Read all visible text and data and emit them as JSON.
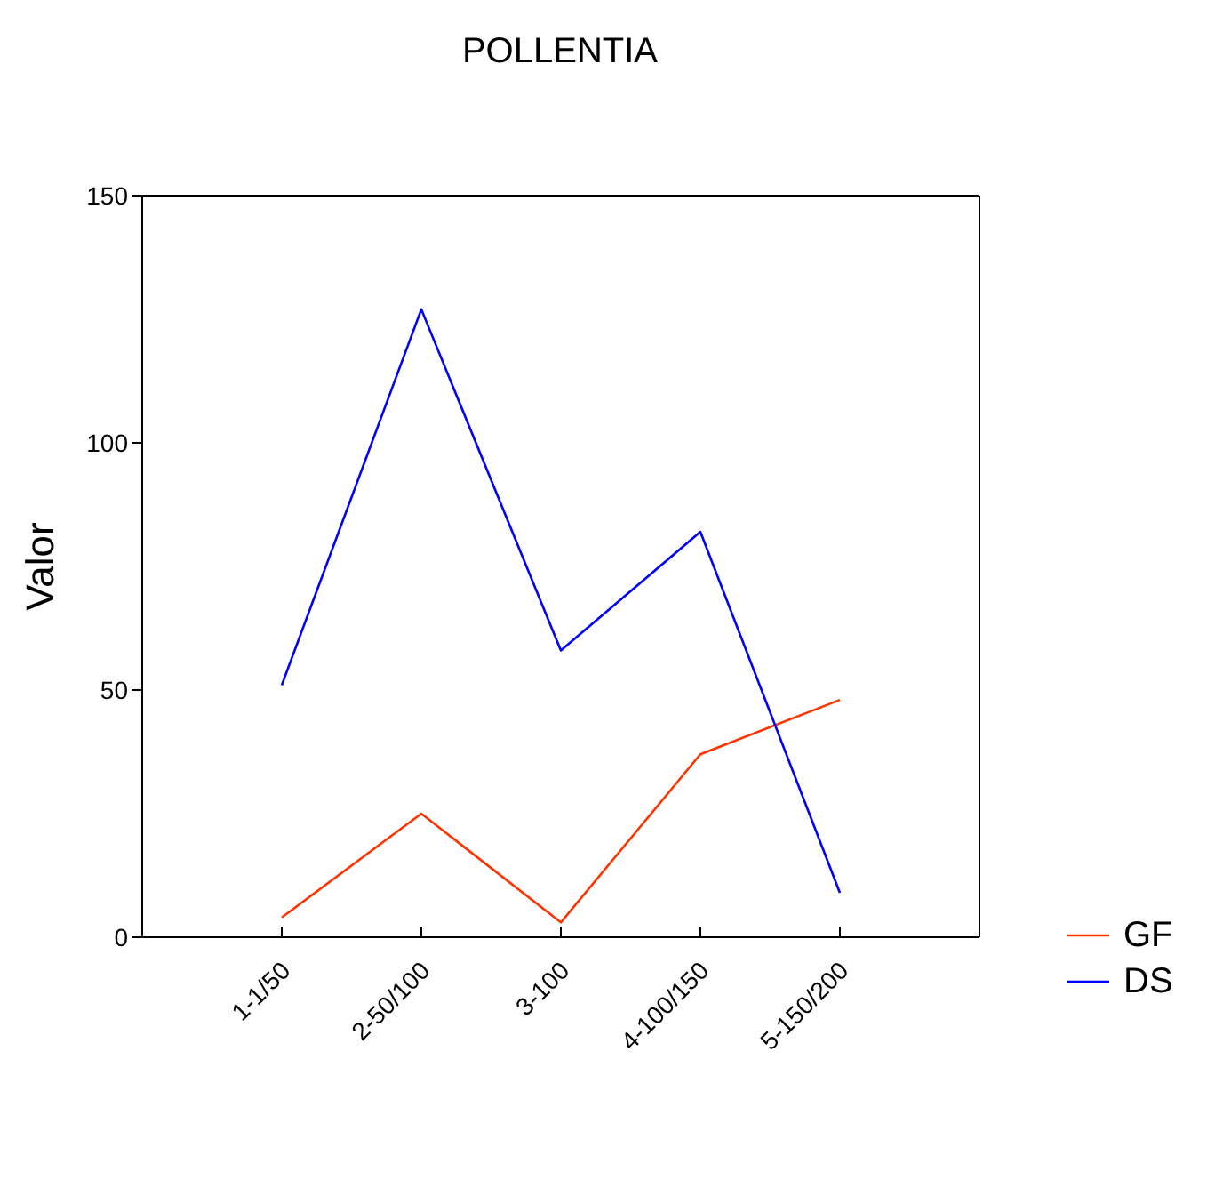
{
  "chart_data": {
    "type": "line",
    "title": "POLLENTIA",
    "ylabel": "Valor",
    "categories": [
      "1-1/50",
      "2-50/100",
      "3-100",
      "4-100/150",
      "5-150/200"
    ],
    "series": [
      {
        "name": "GF",
        "color": "#ff3300",
        "values": [
          4,
          25,
          3,
          37,
          48
        ]
      },
      {
        "name": "DS",
        "color": "#0000ff",
        "values": [
          51,
          127,
          58,
          82,
          9
        ]
      }
    ],
    "ylim": [
      0,
      150
    ],
    "yticks": [
      0,
      50,
      100,
      150
    ],
    "legend": "right"
  }
}
